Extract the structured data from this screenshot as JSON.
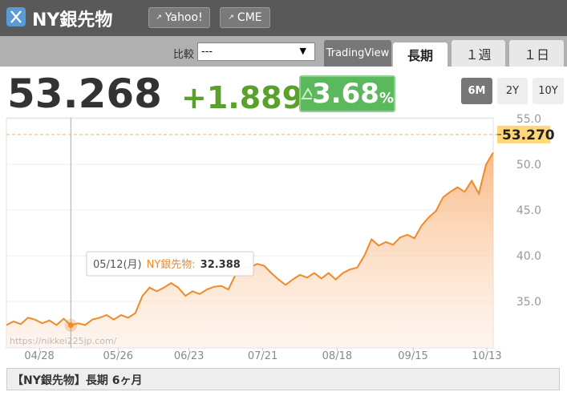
{
  "header": {
    "title": "NY銀先物",
    "links": [
      "Yahoo!",
      "CME"
    ]
  },
  "toolbar": {
    "compare_label": "比較",
    "compare_value": "---",
    "tabs": [
      "TradingView",
      "長期",
      "１週",
      "１日"
    ]
  },
  "quote": {
    "price": "53.268",
    "change": "+1.889",
    "change_pct": "3.68",
    "pct_unit": "%"
  },
  "ranges": [
    "6M",
    "2Y",
    "10Y"
  ],
  "chart_data": {
    "type": "area",
    "color": "#f08a2a",
    "values": [
      32.4,
      32.8,
      32.5,
      33.2,
      33.0,
      32.6,
      32.9,
      32.4,
      33.1,
      32.388,
      32.6,
      32.4,
      33.0,
      33.2,
      33.5,
      33.0,
      33.5,
      33.2,
      33.7,
      35.6,
      36.5,
      36.1,
      36.5,
      37.0,
      36.5,
      35.6,
      36.1,
      35.8,
      36.3,
      36.6,
      36.7,
      36.3,
      37.9,
      38.8,
      38.7,
      39.1,
      38.9,
      38.1,
      37.4,
      36.8,
      37.4,
      37.9,
      37.6,
      38.1,
      37.5,
      38.1,
      37.4,
      38.1,
      38.5,
      38.7,
      40.0,
      41.8,
      41.1,
      41.5,
      41.2,
      42.0,
      42.3,
      41.9,
      43.3,
      44.2,
      44.9,
      46.4,
      47.0,
      47.5,
      47.0,
      48.2,
      46.8,
      50.0,
      51.3
    ],
    "xlim": [
      0,
      68
    ],
    "xticks": [
      {
        "value": 4.6,
        "label": "04/28"
      },
      {
        "value": 15.6,
        "label": "05/26"
      },
      {
        "value": 25.5,
        "label": "06/23"
      },
      {
        "value": 35.8,
        "label": "07/21"
      },
      {
        "value": 46.2,
        "label": "08/18"
      },
      {
        "value": 56.8,
        "label": "09/15"
      },
      {
        "value": 67.1,
        "label": "10/13"
      }
    ],
    "ylim": [
      29.9,
      55.1
    ],
    "yticks": [
      {
        "value": 35,
        "label": "35.0"
      },
      {
        "value": 40,
        "label": "40.0"
      },
      {
        "value": 45,
        "label": "45.0"
      },
      {
        "value": 50,
        "label": "50.0"
      },
      {
        "value": 55,
        "label": "55.0"
      }
    ],
    "grid": true,
    "price_line": {
      "value": 53.27,
      "label": "53.270"
    },
    "tooltip": {
      "index": 9,
      "date": "05/12(月)",
      "label": "NY銀先物:",
      "value": "32.388"
    },
    "watermark": "https://nikkei225jp.com/"
  },
  "footer": "【NY銀先物】長期 6ヶ月"
}
